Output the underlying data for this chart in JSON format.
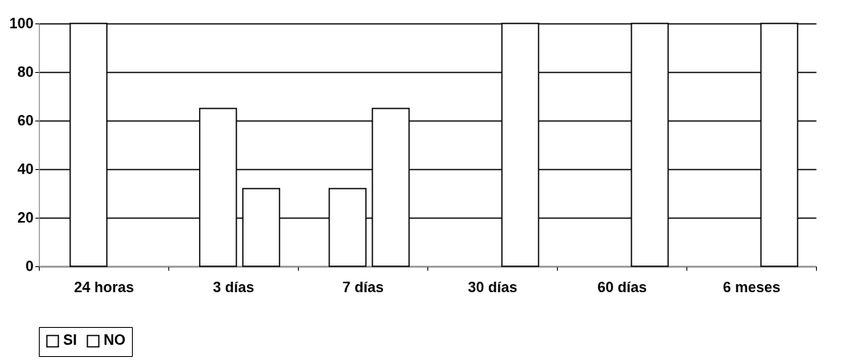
{
  "chart_data": {
    "type": "bar",
    "categories": [
      "24 horas",
      "3 días",
      "7 días",
      "30 días",
      "60 días",
      "6 meses"
    ],
    "series": [
      {
        "name": "SI",
        "color": "#ffffff",
        "values": [
          100,
          65,
          32,
          null,
          null,
          null
        ]
      },
      {
        "name": "NO",
        "color": "#ffffff",
        "values": [
          null,
          32,
          65,
          100,
          100,
          100
        ]
      }
    ],
    "ylim": [
      0,
      100
    ],
    "yticks": [
      0,
      20,
      40,
      60,
      80,
      100
    ],
    "grid": "y",
    "legend": "bottom"
  }
}
